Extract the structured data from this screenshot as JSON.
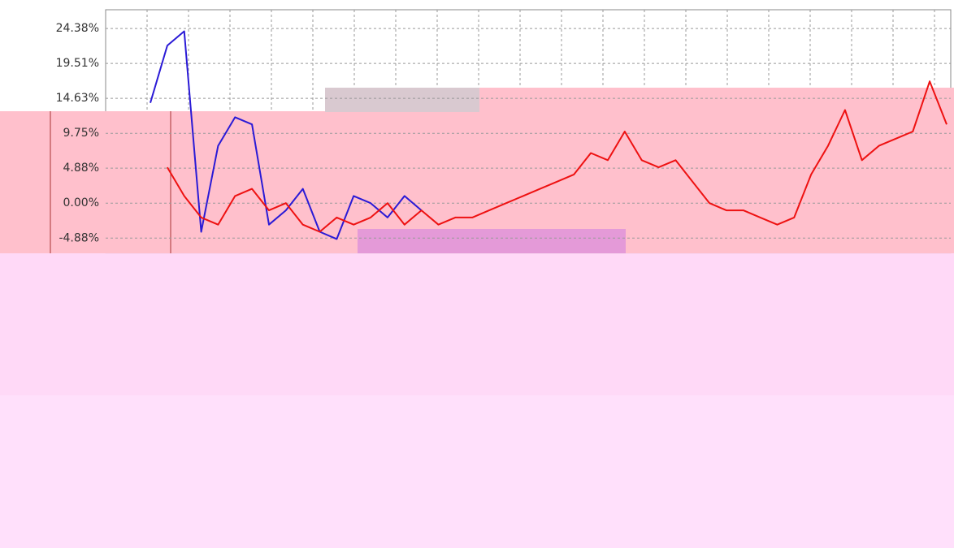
{
  "chart_data": {
    "type": "line",
    "series": [
      {
        "name": null,
        "color": "#2a1ad6",
        "values": [
          14,
          22,
          24,
          -4,
          8,
          12,
          11,
          -3,
          -1,
          2,
          -4,
          -5,
          1,
          0,
          -2,
          1,
          -1,
          null,
          null,
          null,
          null,
          null,
          null,
          null,
          null,
          null,
          null,
          null,
          null,
          null,
          null,
          null,
          null,
          null,
          null,
          null,
          null,
          null,
          null,
          null,
          null,
          null,
          null,
          null,
          null,
          null,
          null,
          null
        ]
      },
      {
        "name": null,
        "color": "#ee1111",
        "values": [
          null,
          5,
          1,
          -2,
          -3,
          1,
          2,
          -1,
          0,
          -3,
          -4,
          -2,
          -3,
          -2,
          0,
          -3,
          -1,
          -3,
          -2,
          -2,
          -1,
          0,
          1,
          2,
          3,
          4,
          7,
          6,
          10,
          6,
          5,
          6,
          3,
          0,
          -1,
          -1,
          -2,
          -3,
          -2,
          4,
          8,
          13,
          6,
          8,
          9,
          10,
          17,
          11
        ]
      }
    ],
    "ylim": [
      -7,
      27
    ],
    "yticks": [
      {
        "value": 24.38,
        "label": "24.38%"
      },
      {
        "value": 19.51,
        "label": "19.51%"
      },
      {
        "value": 14.63,
        "label": "14.63%"
      },
      {
        "value": 9.75,
        "label": "9.75%"
      },
      {
        "value": 4.88,
        "label": "4.88%"
      },
      {
        "value": 0,
        "label": "0.00%"
      },
      {
        "value": -4.88,
        "label": "-4.88%"
      }
    ],
    "grid": true
  }
}
